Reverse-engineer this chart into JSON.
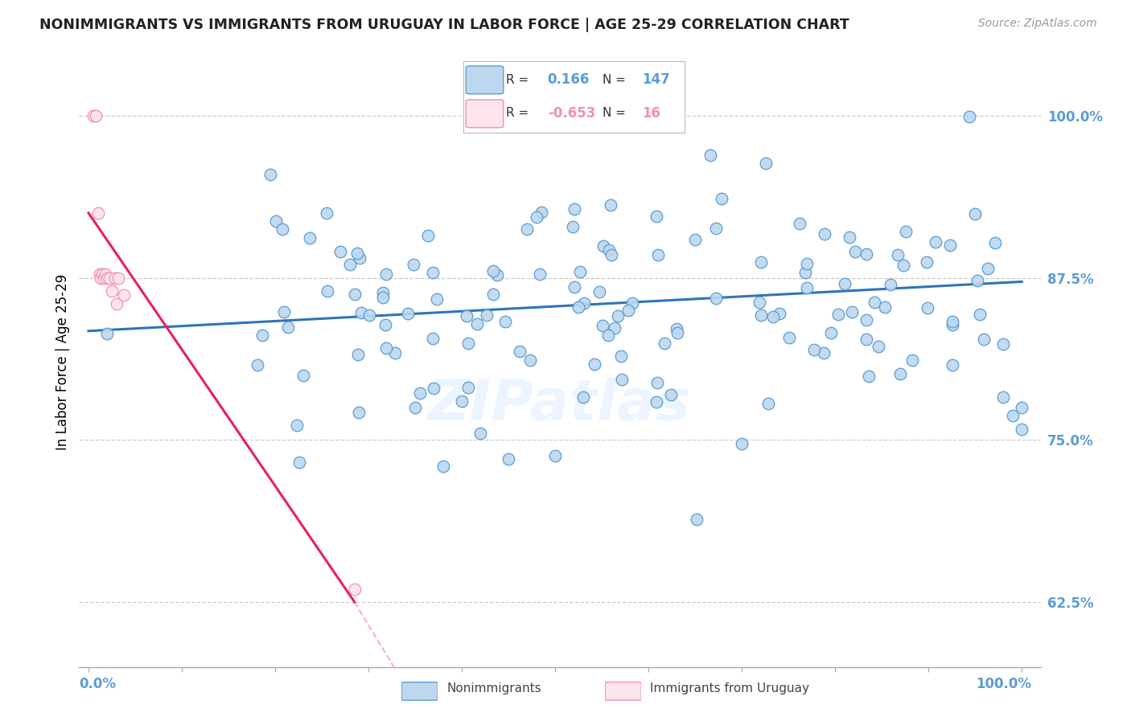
{
  "title": "NONIMMIGRANTS VS IMMIGRANTS FROM URUGUAY IN LABOR FORCE | AGE 25-29 CORRELATION CHART",
  "source": "Source: ZipAtlas.com",
  "ylabel": "In Labor Force | Age 25-29",
  "ytick_labels": [
    "62.5%",
    "75.0%",
    "87.5%",
    "100.0%"
  ],
  "ytick_values": [
    0.625,
    0.75,
    0.875,
    1.0
  ],
  "xlim": [
    -0.01,
    1.02
  ],
  "ylim": [
    0.575,
    1.045
  ],
  "blue_color": "#5b9bd5",
  "blue_fill": "#bdd7ee",
  "pink_color": "#f48fb1",
  "pink_fill": "#fce4ec",
  "trend_blue_color": "#2e75b6",
  "trend_pink_color": "#e91e63",
  "legend_R_blue": "0.166",
  "legend_N_blue": "147",
  "legend_R_pink": "-0.653",
  "legend_N_pink": "16",
  "watermark": "ZIPatlas",
  "blue_trend_start_y": 0.834,
  "blue_trend_end_y": 0.872,
  "pink_trend_start_x": 0.0,
  "pink_trend_start_y": 0.925,
  "pink_trend_end_x": 0.285,
  "pink_trend_end_y": 0.625,
  "pink_trend_dash_end_x": 0.55,
  "pink_trend_dash_end_y": 0.31
}
